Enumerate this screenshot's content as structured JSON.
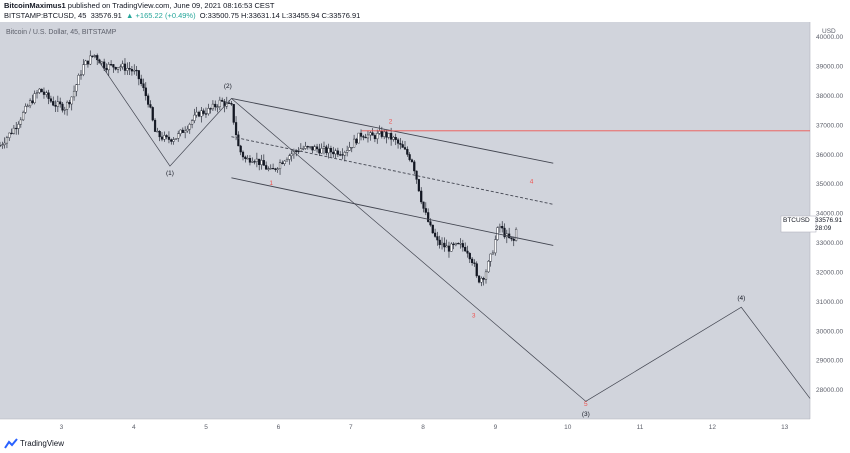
{
  "header": {
    "author": "BitcoinMaximus1",
    "published_text": "published on TradingView.com, June 09, 2021 08:16:53 CEST",
    "symbol_line": "BITSTAMP:BTCUSD, 45",
    "last_price": "33576.91",
    "change": "▲ +165.22 (+0.49%)",
    "ohlc": "O:33500.75 H:33631.14 L:33455.94 C:33576.91"
  },
  "footer": {
    "brand": "TradingView"
  },
  "colors": {
    "plot_bg": "#d1d4dc",
    "candle": "#131722",
    "trend_line": "#434651",
    "resistance": "#ef5350",
    "label_red": "#ef5350",
    "axis_text": "#5d606b"
  },
  "chart_data": {
    "type": "candlestick",
    "title": "Bitcoin / U.S. Dollar, 45, BITSTAMP",
    "instrument_label": "BTCUSD",
    "price_label": "33576.91",
    "countdown": "28:09",
    "ylim": [
      27000,
      40500
    ],
    "xlim": [
      2.15,
      13.35
    ],
    "y_ticks": [
      28000,
      29000,
      30000,
      31000,
      32000,
      33000,
      34000,
      35000,
      36000,
      37000,
      38000,
      39000,
      40000
    ],
    "y_tick_labels": [
      "28000.00",
      "29000.00",
      "30000.00",
      "31000.00",
      "32000.00",
      "33000.00",
      "34000.00",
      "35000.00",
      "36000.00",
      "37000.00",
      "38000.00",
      "39000.00",
      "40000.00"
    ],
    "x_ticks": [
      3,
      4,
      5,
      6,
      7,
      8,
      9,
      10,
      11,
      12,
      13
    ],
    "x_tick_labels": [
      "3",
      "4",
      "5",
      "6",
      "7",
      "8",
      "9",
      "10",
      "11",
      "12",
      "13"
    ],
    "grid": false,
    "price_path": [
      [
        2.15,
        36300
      ],
      [
        2.35,
        36900
      ],
      [
        2.55,
        37700
      ],
      [
        2.7,
        38200
      ],
      [
        2.9,
        37700
      ],
      [
        3.05,
        37600
      ],
      [
        3.15,
        38000
      ],
      [
        3.3,
        39000
      ],
      [
        3.45,
        39400
      ],
      [
        3.6,
        39000
      ],
      [
        3.8,
        39000
      ],
      [
        3.95,
        38900
      ],
      [
        4.05,
        38700
      ],
      [
        4.2,
        37800
      ],
      [
        4.3,
        36700
      ],
      [
        4.45,
        36500
      ],
      [
        4.6,
        36600
      ],
      [
        4.75,
        37000
      ],
      [
        4.9,
        37400
      ],
      [
        5.05,
        37500
      ],
      [
        5.2,
        37800
      ],
      [
        5.35,
        37600
      ],
      [
        5.45,
        36200
      ],
      [
        5.55,
        35800
      ],
      [
        5.65,
        35900
      ],
      [
        5.8,
        35600
      ],
      [
        5.9,
        35400
      ],
      [
        6.1,
        35900
      ],
      [
        6.3,
        36200
      ],
      [
        6.5,
        36200
      ],
      [
        6.7,
        36100
      ],
      [
        6.9,
        36100
      ],
      [
        7.0,
        36300
      ],
      [
        7.15,
        36700
      ],
      [
        7.3,
        36600
      ],
      [
        7.45,
        36700
      ],
      [
        7.6,
        36500
      ],
      [
        7.75,
        36100
      ],
      [
        7.85,
        35800
      ],
      [
        7.9,
        35300
      ],
      [
        8.0,
        34200
      ],
      [
        8.1,
        33500
      ],
      [
        8.2,
        33000
      ],
      [
        8.35,
        32800
      ],
      [
        8.5,
        32900
      ],
      [
        8.6,
        32800
      ],
      [
        8.7,
        32300
      ],
      [
        8.75,
        31700
      ],
      [
        8.85,
        31900
      ],
      [
        8.95,
        32600
      ],
      [
        9.05,
        33600
      ],
      [
        9.15,
        33200
      ],
      [
        9.25,
        33000
      ],
      [
        9.3,
        33600
      ]
    ],
    "channel_lines": [
      {
        "style": "solid",
        "from": [
          5.35,
          37900
        ],
        "to": [
          9.8,
          35700
        ]
      },
      {
        "style": "solid",
        "from": [
          5.35,
          35200
        ],
        "to": [
          9.8,
          32900
        ]
      },
      {
        "style": "dashed",
        "from": [
          5.35,
          36600
        ],
        "to": [
          9.8,
          34300
        ]
      }
    ],
    "projection_path": [
      [
        3.45,
        39400
      ],
      [
        4.5,
        35600
      ],
      [
        5.35,
        37900
      ],
      [
        10.25,
        27600
      ],
      [
        12.4,
        30800
      ],
      [
        13.35,
        27700
      ]
    ],
    "resistance_line": {
      "y": 36800,
      "x_from": 7.15,
      "x_to": 13.35
    },
    "wave_labels": [
      {
        "text": "(1)",
        "x": 4.5,
        "y": 35300,
        "color": "dark"
      },
      {
        "text": "(2)",
        "x": 5.3,
        "y": 38250,
        "color": "dark"
      },
      {
        "text": "1",
        "x": 5.9,
        "y": 34950,
        "color": "red"
      },
      {
        "text": "2",
        "x": 7.55,
        "y": 37050,
        "color": "red"
      },
      {
        "text": "3",
        "x": 8.7,
        "y": 30450,
        "color": "red"
      },
      {
        "text": "4",
        "x": 9.5,
        "y": 35000,
        "color": "red"
      },
      {
        "text": "5",
        "x": 10.25,
        "y": 27450,
        "color": "red"
      },
      {
        "text": "(3)",
        "x": 10.25,
        "y": 27100,
        "color": "dark"
      },
      {
        "text": "(4)",
        "x": 12.4,
        "y": 31050,
        "color": "dark"
      }
    ]
  }
}
